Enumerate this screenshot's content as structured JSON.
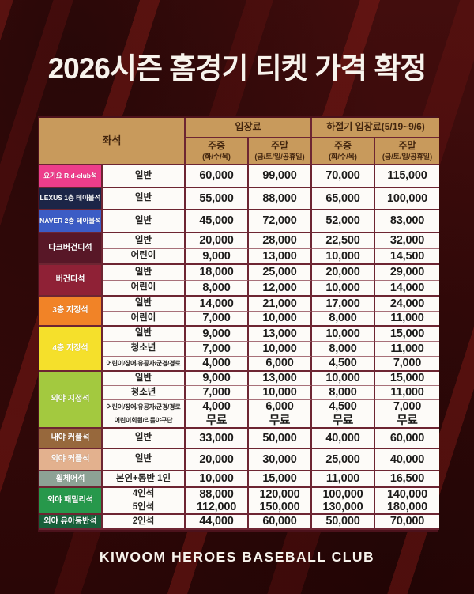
{
  "title": "2026시즌 홈경기 티켓 가격 확정",
  "footer": "KIWOOM HEROES BASEBALL CLUB",
  "palette": {
    "background": "#2e0708",
    "header_bg": "#c89a5c",
    "header_text": "#42250e",
    "grid_line": "#6d2532",
    "grid_line_light": "#a87079",
    "cell_bg": "#fdfbf8",
    "price_text": "#1c1b1a",
    "title_text": "#f7f3ec"
  },
  "table": {
    "header": {
      "seat": "좌석",
      "groups": [
        {
          "label": "입장료"
        },
        {
          "label": "하절기 입장료(5/19~9/6)"
        }
      ],
      "subcols": [
        {
          "label": "주중",
          "sub": "(화/수/목)"
        },
        {
          "label": "주말",
          "sub": "(금/토/일/공휴일)"
        },
        {
          "label": "주중",
          "sub": "(화/수/목)"
        },
        {
          "label": "주말",
          "sub": "(금/토/일/공휴일)"
        }
      ]
    },
    "rows": [
      {
        "category": "요기요 R.d-club석",
        "color": "#ee3d8b",
        "tiers": [
          {
            "type": "일반",
            "prices": [
              "60,000",
              "99,000",
              "70,000",
              "115,000"
            ]
          }
        ]
      },
      {
        "category": "LEXUS 1층 테이블석",
        "color": "#1c2547",
        "tiers": [
          {
            "type": "일반",
            "prices": [
              "55,000",
              "88,000",
              "65,000",
              "100,000"
            ]
          }
        ]
      },
      {
        "category": "NAVER 2층 테이블석",
        "color": "#3c5cc5",
        "tiers": [
          {
            "type": "일반",
            "prices": [
              "45,000",
              "72,000",
              "52,000",
              "83,000"
            ]
          }
        ]
      },
      {
        "category": "다크버건디석",
        "color": "#581727",
        "tiers": [
          {
            "type": "일반",
            "prices": [
              "20,000",
              "28,000",
              "22,500",
              "32,000"
            ]
          },
          {
            "type": "어린이",
            "prices": [
              "9,000",
              "13,000",
              "10,000",
              "14,500"
            ]
          }
        ]
      },
      {
        "category": "버건디석",
        "color": "#8f2136",
        "tiers": [
          {
            "type": "일반",
            "prices": [
              "18,000",
              "25,000",
              "20,000",
              "29,000"
            ]
          },
          {
            "type": "어린이",
            "prices": [
              "8,000",
              "12,000",
              "10,000",
              "14,000"
            ]
          }
        ]
      },
      {
        "category": "3층 지정석",
        "color": "#f18327",
        "tiers": [
          {
            "type": "일반",
            "prices": [
              "14,000",
              "21,000",
              "17,000",
              "24,000"
            ]
          },
          {
            "type": "어린이",
            "prices": [
              "7,000",
              "10,000",
              "8,000",
              "11,000"
            ]
          }
        ]
      },
      {
        "category": "4층 지정석",
        "color": "#f5e02b",
        "tiers": [
          {
            "type": "일반",
            "prices": [
              "9,000",
              "13,000",
              "10,000",
              "15,000"
            ]
          },
          {
            "type": "청소년",
            "prices": [
              "7,000",
              "10,000",
              "8,000",
              "11,000"
            ]
          },
          {
            "type": "어린이/장애/유공자/군경/경로",
            "prices": [
              "4,000",
              "6,000",
              "4,500",
              "7,000"
            ]
          }
        ]
      },
      {
        "category": "외야 지정석",
        "color": "#a3c93f",
        "tiers": [
          {
            "type": "일반",
            "prices": [
              "9,000",
              "13,000",
              "10,000",
              "15,000"
            ]
          },
          {
            "type": "청소년",
            "prices": [
              "7,000",
              "10,000",
              "8,000",
              "11,000"
            ]
          },
          {
            "type": "어린이/장애/유공자/군경/경로",
            "prices": [
              "4,000",
              "6,000",
              "4,500",
              "7,000"
            ]
          },
          {
            "type": "어린이회원/리틀야구단",
            "prices": [
              "무료",
              "무료",
              "무료",
              "무료"
            ]
          }
        ]
      },
      {
        "category": "내야 커플석",
        "color": "#97683c",
        "tiers": [
          {
            "type": "일반",
            "prices": [
              "33,000",
              "50,000",
              "40,000",
              "60,000"
            ]
          }
        ]
      },
      {
        "category": "외야 커플석",
        "color": "#e3b18e",
        "tiers": [
          {
            "type": "일반",
            "prices": [
              "20,000",
              "30,000",
              "25,000",
              "40,000"
            ]
          }
        ]
      },
      {
        "category": "휠체어석",
        "color": "#8da295",
        "tiers": [
          {
            "type": "본인+동반 1인",
            "prices": [
              "10,000",
              "15,000",
              "11,000",
              "16,500"
            ]
          }
        ]
      },
      {
        "category": "외야 패밀리석",
        "color": "#27984b",
        "tiers": [
          {
            "type": "4인석",
            "prices": [
              "88,000",
              "120,000",
              "100,000",
              "140,000"
            ]
          },
          {
            "type": "5인석",
            "prices": [
              "112,000",
              "150,000",
              "130,000",
              "180,000"
            ]
          }
        ]
      },
      {
        "category": "외야 유아동반석",
        "color": "#18603a",
        "tiers": [
          {
            "type": "2인석",
            "prices": [
              "44,000",
              "60,000",
              "50,000",
              "70,000"
            ]
          }
        ]
      }
    ]
  }
}
